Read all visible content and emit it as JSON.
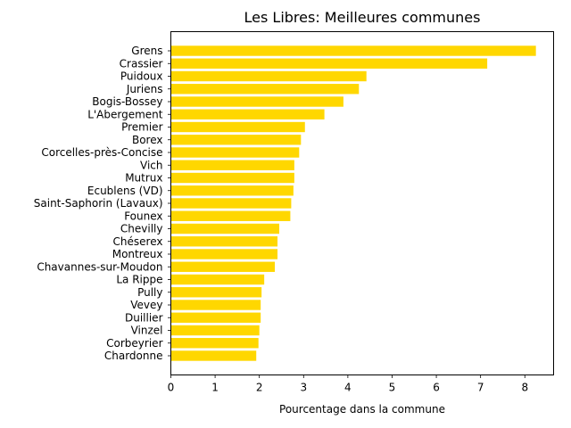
{
  "chart_data": {
    "type": "bar",
    "orientation": "horizontal",
    "title": "Les Libres: Meilleures communes",
    "xlabel": "Pourcentage dans la commune",
    "ylabel": "",
    "categories": [
      "Grens",
      "Crassier",
      "Puidoux",
      "Juriens",
      "Bogis-Bossey",
      "L'Abergement",
      "Premier",
      "Borex",
      "Corcelles-près-Concise",
      "Vich",
      "Mutrux",
      "Ecublens (VD)",
      "Saint-Saphorin (Lavaux)",
      "Founex",
      "Chevilly",
      "Chéserex",
      "Montreux",
      "Chavannes-sur-Moudon",
      "La Rippe",
      "Pully",
      "Vevey",
      "Duillier",
      "Vinzel",
      "Corbeyrier",
      "Chardonne"
    ],
    "values": [
      8.25,
      7.15,
      4.42,
      4.25,
      3.9,
      3.47,
      3.03,
      2.94,
      2.9,
      2.79,
      2.79,
      2.77,
      2.72,
      2.7,
      2.45,
      2.41,
      2.41,
      2.35,
      2.11,
      2.05,
      2.03,
      2.03,
      2.0,
      1.98,
      1.93
    ],
    "xlim": [
      0,
      8.65
    ],
    "xticks": [
      "0",
      "1",
      "2",
      "3",
      "4",
      "5",
      "6",
      "7",
      "8"
    ],
    "bar_color": "#FFD700",
    "grid": false,
    "legend": "none"
  }
}
